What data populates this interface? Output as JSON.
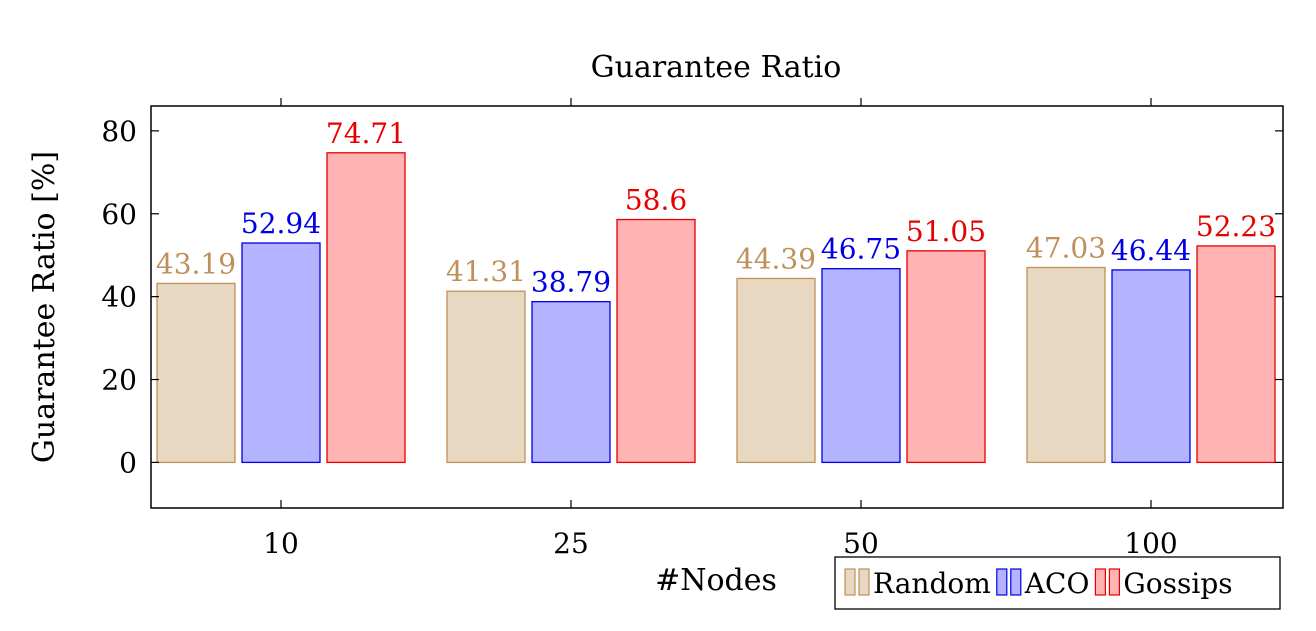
{
  "chart_data": {
    "type": "bar",
    "title": "Guarantee Ratio",
    "xlabel": "#Nodes",
    "ylabel": "Guarantee Ratio [%]",
    "categories": [
      "10",
      "25",
      "50",
      "100"
    ],
    "ylim": [
      -11,
      86
    ],
    "yticks": [
      0,
      20,
      40,
      60,
      80
    ],
    "series": [
      {
        "name": "Random",
        "values": [
          43.19,
          41.31,
          44.39,
          47.03
        ],
        "fill": "#e8d7c1",
        "stroke": "#c0905a",
        "label_color": "#c0905a"
      },
      {
        "name": "ACO",
        "values": [
          52.94,
          38.79,
          46.75,
          46.44
        ],
        "fill": "#b3b3ff",
        "stroke": "#0000e6",
        "label_color": "#0000e6"
      },
      {
        "name": "Gossips",
        "values": [
          74.71,
          58.6,
          51.05,
          52.23
        ],
        "fill": "#ffb3b3",
        "stroke": "#e60000",
        "label_color": "#e60000"
      }
    ],
    "value_labels": [
      [
        "43.19",
        "41.31",
        "44.39",
        "47.03"
      ],
      [
        "52.94",
        "38.79",
        "46.75",
        "46.44"
      ],
      [
        "74.71",
        "58.6",
        "51.05",
        "52.23"
      ]
    ],
    "grid": false,
    "legend_position": "bottom-right"
  }
}
